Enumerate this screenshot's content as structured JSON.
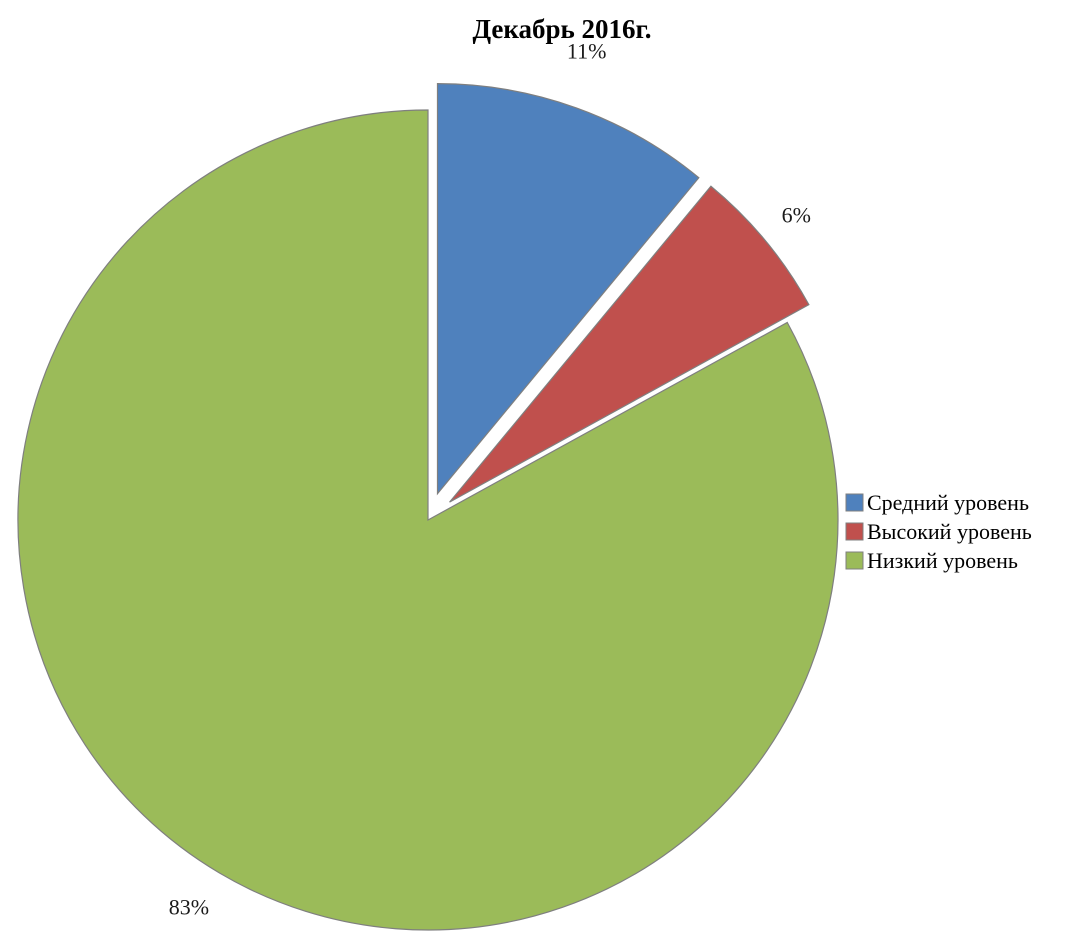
{
  "chart_data": {
    "type": "pie",
    "title": "Декабрь 2016г.",
    "categories": [
      "Средний уровень",
      "Высокий уровень",
      "Низкий уровень"
    ],
    "values": [
      11,
      6,
      83
    ],
    "data_labels": [
      "11%",
      "6%",
      "83%"
    ],
    "colors": [
      "#4f81bd",
      "#c0504d",
      "#9bbb59"
    ],
    "exploded": [
      true,
      true,
      false
    ],
    "legend_position": "right",
    "start_angle_deg": 0,
    "direction": "clockwise"
  }
}
